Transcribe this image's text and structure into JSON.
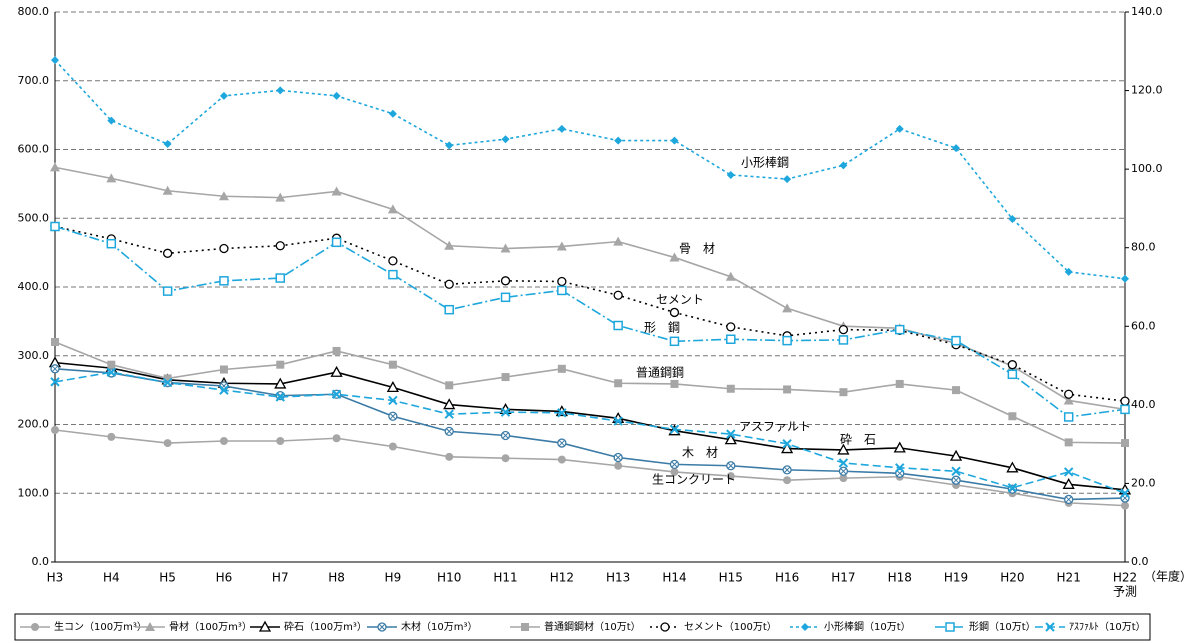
{
  "chart_data": {
    "type": "line",
    "categories": [
      "H3",
      "H4",
      "H5",
      "H6",
      "H7",
      "H8",
      "H9",
      "H10",
      "H11",
      "H12",
      "H13",
      "H14",
      "H15",
      "H16",
      "H17",
      "H18",
      "H19",
      "H20",
      "H21",
      "H22"
    ],
    "category_note": "予測",
    "x_unit_label": "（年度）",
    "ylim": [
      0,
      800
    ],
    "yticks": [
      {
        "value": 0,
        "label": "0.0"
      },
      {
        "value": 100,
        "label": "100.0"
      },
      {
        "value": 200,
        "label": "200.0"
      },
      {
        "value": 300,
        "label": "300.0"
      },
      {
        "value": 400,
        "label": "400.0"
      },
      {
        "value": 500,
        "label": "500.0"
      },
      {
        "value": 600,
        "label": "600.0"
      },
      {
        "value": 700,
        "label": "700.0"
      },
      {
        "value": 800,
        "label": "800.0"
      }
    ],
    "y2lim": [
      0,
      140
    ],
    "y2ticks": [
      {
        "value": 0,
        "label": "0.0"
      },
      {
        "value": 20,
        "label": "20.0"
      },
      {
        "value": 40,
        "label": "40.0"
      },
      {
        "value": 60,
        "label": "60.0"
      },
      {
        "value": 80,
        "label": "80.0"
      },
      {
        "value": 100,
        "label": "100.0"
      },
      {
        "value": 120,
        "label": "120.0"
      },
      {
        "value": 140,
        "label": "140.0"
      }
    ],
    "grid": true,
    "series": [
      {
        "name": "生コン（100万m³）",
        "color": "#a6a6a6",
        "marker": "circle",
        "dash": "",
        "values": [
          192,
          182,
          173,
          176,
          176,
          180,
          168,
          153,
          151,
          149,
          140,
          131,
          125,
          119,
          122,
          124,
          112,
          100,
          86,
          82
        ]
      },
      {
        "name": "骨材（100万m³）",
        "color": "#a6a6a6",
        "marker": "triangle",
        "dash": "",
        "values": [
          574,
          558,
          540,
          532,
          530,
          539,
          513,
          460,
          456,
          459,
          466,
          443,
          415,
          369,
          343,
          340,
          318,
          285,
          235,
          222
        ]
      },
      {
        "name": "砕石（100万m³）",
        "color": "#000000",
        "marker": "triangle-open",
        "dash": "",
        "values": [
          290,
          282,
          265,
          260,
          259,
          276,
          254,
          229,
          222,
          219,
          209,
          191,
          178,
          165,
          163,
          166,
          154,
          137,
          113,
          105
        ]
      },
      {
        "name": "木材（10万m³）",
        "color": "#3b7ba6",
        "marker": "circle-x",
        "dash": "",
        "values": [
          281,
          275,
          261,
          256,
          242,
          244,
          212,
          190,
          184,
          173,
          152,
          142,
          140,
          134,
          132,
          129,
          119,
          106,
          91,
          93
        ]
      },
      {
        "name": "普通鋼鋼材（10万t）",
        "color": "#a6a6a6",
        "marker": "square",
        "dash": "",
        "values": [
          320,
          287,
          267,
          280,
          287,
          307,
          287,
          257,
          269,
          281,
          260,
          259,
          252,
          251,
          247,
          259,
          250,
          212,
          174,
          173
        ]
      },
      {
        "name": "セメント（100万t）",
        "color": "#000000",
        "marker": "circle-open",
        "dash": "2,4",
        "values": [
          488,
          470,
          449,
          456,
          460,
          471,
          438,
          404,
          409,
          408,
          388,
          363,
          342,
          329,
          338,
          337,
          316,
          287,
          244,
          234
        ]
      },
      {
        "name": "小形棒鋼（10万t）",
        "color": "#1ea7dc",
        "marker": "diamond",
        "dash": "3,3",
        "values": [
          730,
          642,
          608,
          678,
          686,
          678,
          652,
          606,
          615,
          630,
          613,
          613,
          563,
          557,
          577,
          630,
          602,
          499,
          422,
          412
        ]
      },
      {
        "name": "形鋼（10万t）",
        "color": "#1ea7dc",
        "marker": "square-open",
        "dash": "10,3,2,3",
        "values": [
          488,
          463,
          394,
          409,
          413,
          465,
          418,
          367,
          385,
          395,
          344,
          321,
          324,
          322,
          323,
          338,
          322,
          273,
          211,
          222
        ]
      },
      {
        "name": "ｱｽﾌｧﾙﾄ（10万t）",
        "color": "#1ea7dc",
        "marker": "x",
        "dash": "8,4",
        "values": [
          262,
          276,
          261,
          250,
          240,
          244,
          235,
          215,
          218,
          217,
          205,
          193,
          186,
          172,
          144,
          137,
          132,
          108,
          131,
          100
        ]
      }
    ],
    "annotations": [
      "小形棒鋼",
      "骨　材",
      "セメント",
      "形　鋼",
      "普通鋼鋼",
      "アスファルト",
      "砕　石",
      "木　材",
      "生コンクリート"
    ]
  }
}
